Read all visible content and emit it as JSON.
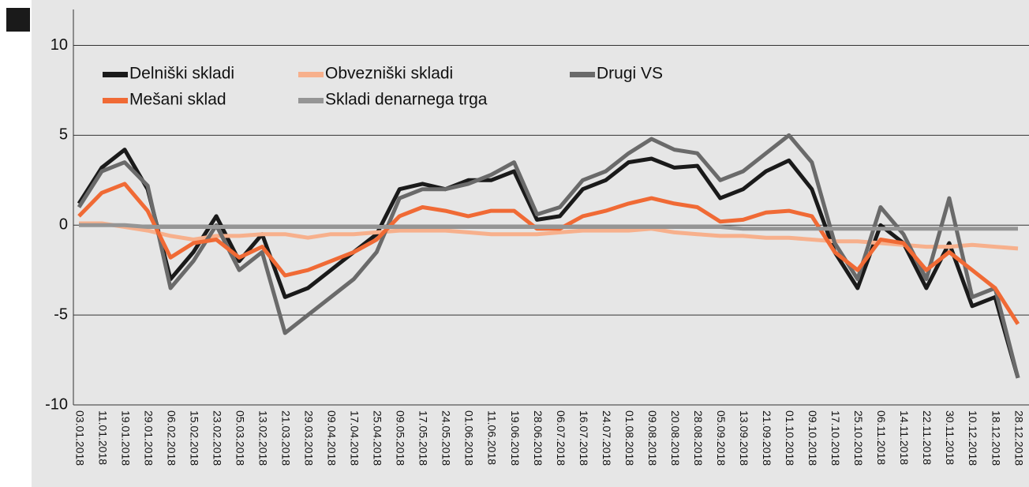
{
  "chart_data": {
    "type": "line",
    "categories": [
      "03.01.2018",
      "11.01.2018",
      "19.01.2018",
      "29.01.2018",
      "06.02.2018",
      "15.02.2018",
      "23.02.2018",
      "05.03.2018",
      "13.02.2018",
      "21.03.2018",
      "29.03.2018",
      "09.04.2018",
      "17.04.2018",
      "25.04.2018",
      "09.05.2018",
      "17.05.2018",
      "24.05.2018",
      "01.06.2018",
      "11.06.2018",
      "19.06.2018",
      "28.06.2018",
      "06.07.2018",
      "16.07.2018",
      "24.07.2018",
      "01.08.2018",
      "09.08.2018",
      "20.08.2018",
      "28.08.2018",
      "05.09.2018",
      "13.09.2018",
      "21.09.2018",
      "01.10.2018",
      "09.10.2018",
      "17.10.2018",
      "25.10.2018",
      "06.11.2018",
      "14.11.2018",
      "22.11.2018",
      "30.11.2018",
      "10.12.2018",
      "18.12.2018",
      "28.12.2018"
    ],
    "series": [
      {
        "name": "Delniški skladi",
        "color": "#1a1a1a",
        "values": [
          1.2,
          3.2,
          4.2,
          2.0,
          -3.0,
          -1.5,
          0.5,
          -2.0,
          -0.5,
          -4.0,
          -3.5,
          -2.5,
          -1.5,
          -0.5,
          2.0,
          2.3,
          2.0,
          2.5,
          2.5,
          3.0,
          0.3,
          0.5,
          2.0,
          2.5,
          3.5,
          3.7,
          3.2,
          3.3,
          1.5,
          2.0,
          3.0,
          3.6,
          2.0,
          -1.5,
          -3.5,
          0.0,
          -1.0,
          -3.5,
          -1.0,
          -4.5,
          -4.0,
          -8.5
        ]
      },
      {
        "name": "Obvezniški skladi",
        "color": "#f7b08c",
        "values": [
          0.1,
          0.1,
          -0.1,
          -0.3,
          -0.6,
          -0.8,
          -0.6,
          -0.6,
          -0.5,
          -0.5,
          -0.7,
          -0.5,
          -0.5,
          -0.4,
          -0.3,
          -0.3,
          -0.3,
          -0.4,
          -0.5,
          -0.5,
          -0.5,
          -0.4,
          -0.3,
          -0.3,
          -0.3,
          -0.2,
          -0.4,
          -0.5,
          -0.6,
          -0.6,
          -0.7,
          -0.7,
          -0.8,
          -0.9,
          -0.9,
          -1.0,
          -1.1,
          -1.2,
          -1.2,
          -1.1,
          -1.2,
          -1.3
        ]
      },
      {
        "name": "Drugi VS",
        "color": "#6a6a6a",
        "values": [
          1.0,
          3.0,
          3.5,
          2.2,
          -3.5,
          -2.0,
          0.0,
          -2.5,
          -1.5,
          -6.0,
          -5.0,
          -4.0,
          -3.0,
          -1.5,
          1.5,
          2.0,
          2.0,
          2.3,
          2.8,
          3.5,
          0.6,
          1.0,
          2.5,
          3.0,
          4.0,
          4.8,
          4.2,
          4.0,
          2.5,
          3.0,
          4.0,
          5.0,
          3.5,
          -1.0,
          -3.0,
          1.0,
          -0.5,
          -3.0,
          1.5,
          -4.0,
          -3.5,
          -8.5
        ]
      },
      {
        "name": "Mešani sklad",
        "color": "#f06a35",
        "values": [
          0.5,
          1.8,
          2.3,
          0.8,
          -1.8,
          -1.0,
          -0.8,
          -1.8,
          -1.2,
          -2.8,
          -2.5,
          -2.0,
          -1.5,
          -0.8,
          0.5,
          1.0,
          0.8,
          0.5,
          0.8,
          0.8,
          -0.2,
          -0.2,
          0.5,
          0.8,
          1.2,
          1.5,
          1.2,
          1.0,
          0.2,
          0.3,
          0.7,
          0.8,
          0.5,
          -1.5,
          -2.5,
          -0.8,
          -1.0,
          -2.5,
          -1.5,
          -2.5,
          -3.5,
          -5.5
        ]
      },
      {
        "name": "Skladi denarnega trga",
        "color": "#959595",
        "values": [
          0.0,
          0.0,
          0.0,
          -0.1,
          -0.1,
          -0.1,
          -0.1,
          -0.1,
          -0.1,
          -0.1,
          -0.1,
          -0.1,
          -0.1,
          -0.1,
          -0.1,
          -0.1,
          -0.1,
          -0.1,
          -0.1,
          -0.1,
          -0.1,
          -0.1,
          -0.1,
          -0.1,
          -0.1,
          -0.1,
          -0.1,
          -0.1,
          -0.1,
          -0.2,
          -0.2,
          -0.2,
          -0.2,
          -0.2,
          -0.2,
          -0.2,
          -0.2,
          -0.2,
          -0.2,
          -0.2,
          -0.2,
          -0.2
        ]
      }
    ],
    "ylim": [
      -10,
      12
    ],
    "yticks": [
      -10,
      -5,
      0,
      5,
      10
    ],
    "grid": true
  }
}
